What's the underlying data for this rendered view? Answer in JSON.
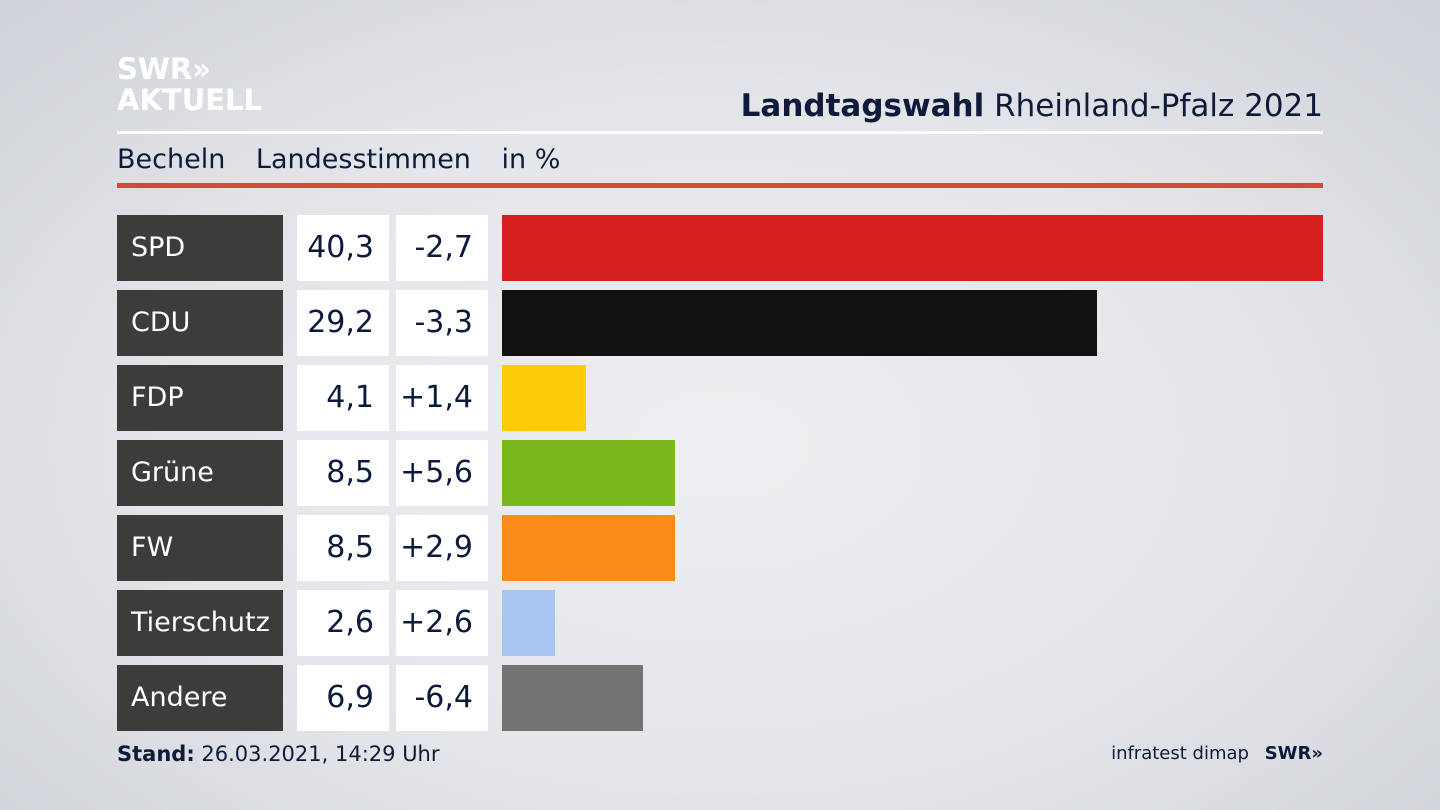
{
  "logo": {
    "line1": "SWR»",
    "line2": "AKTUELL"
  },
  "header": {
    "title_bold": "Landtagswahl",
    "title_rest": "Rheinland-Pfalz 2021"
  },
  "subheader": {
    "place": "Becheln",
    "type": "Landesstimmen",
    "unit": "in %"
  },
  "colors": {
    "accent_line": "#d8473a",
    "label_bg": "#3c3c3b"
  },
  "chart_data": {
    "type": "bar",
    "categories": [
      "SPD",
      "CDU",
      "FDP",
      "Grüne",
      "FW",
      "Tierschutz",
      "Andere"
    ],
    "values": [
      40.3,
      29.2,
      4.1,
      8.5,
      8.5,
      2.6,
      6.9
    ],
    "values_display": [
      "40,3",
      "29,2",
      "4,1",
      "8,5",
      "8,5",
      "2,6",
      "6,9"
    ],
    "changes": [
      -2.7,
      -3.3,
      1.4,
      5.6,
      2.9,
      2.6,
      -6.4
    ],
    "changes_display": [
      "-2,7",
      "-3,3",
      "+1,4",
      "+5,6",
      "+2,9",
      "+2,6",
      "-6,4"
    ],
    "colors": [
      "#d61f1f",
      "#111111",
      "#fccc0a",
      "#7ab91b",
      "#fb8b19",
      "#a8c6ef",
      "#737374"
    ]
  },
  "footer": {
    "stand_label": "Stand:",
    "stand_value": "26.03.2021, 14:29 Uhr",
    "source": "infratest dimap",
    "brand": "SWR»"
  }
}
